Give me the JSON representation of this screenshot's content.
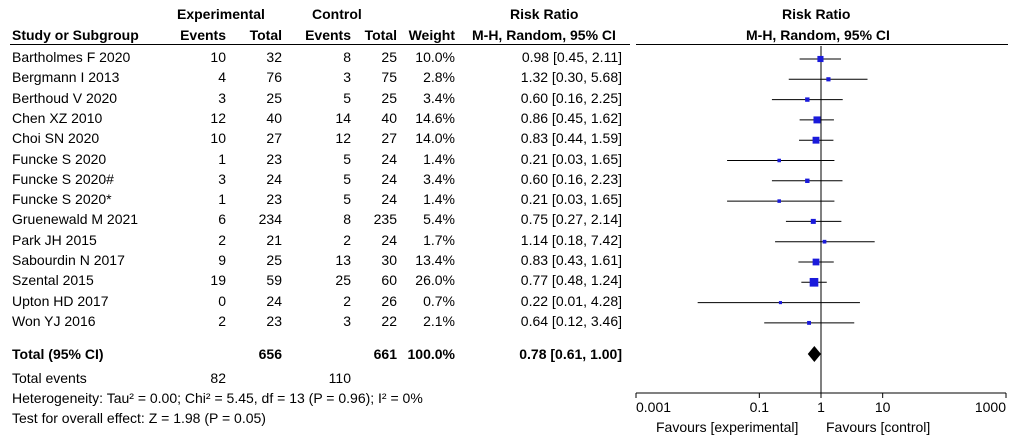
{
  "header": {
    "study_col": "Study or Subgroup",
    "experimental": "Experimental",
    "control": "Control",
    "events": "Events",
    "total": "Total",
    "weight": "Weight",
    "risk_ratio": "Risk Ratio",
    "method": "M-H, Random, 95% CI"
  },
  "totals": {
    "label": "Total (95% CI)",
    "exp_total": "656",
    "ctrl_total": "661",
    "weight": "100.0%",
    "rr": "0.78 [0.61, 1.00]",
    "events_label": "Total events",
    "exp_events": "82",
    "ctrl_events": "110",
    "heterogeneity": "Heterogeneity: Tau² = 0.00; Chi² = 5.45, df = 13 (P = 0.96); I² = 0%",
    "overall": "Test for overall effect: Z = 1.98 (P = 0.05)"
  },
  "axis": {
    "ticks": [
      "0.001",
      "0.1",
      "1",
      "10",
      "1000"
    ],
    "favours_left": "Favours [experimental]",
    "favours_right": "Favours [control]"
  },
  "colors": {
    "marker": "#1a1adb",
    "line": "#000000"
  },
  "chart_data": {
    "type": "forest",
    "title": "Risk Ratio",
    "xlabel": "M-H, Random, 95% CI",
    "scale": "log",
    "xlim": [
      0.001,
      1000
    ],
    "studies": [
      {
        "name": "Bartholmes F 2020",
        "exp_events": 10,
        "exp_total": 32,
        "ctrl_events": 8,
        "ctrl_total": 25,
        "weight": "10.0%",
        "rr_text": "0.98 [0.45, 2.11]",
        "rr": 0.98,
        "lo": 0.45,
        "hi": 2.11
      },
      {
        "name": "Bergmann I 2013",
        "exp_events": 4,
        "exp_total": 76,
        "ctrl_events": 3,
        "ctrl_total": 75,
        "weight": "2.8%",
        "rr_text": "1.32 [0.30, 5.68]",
        "rr": 1.32,
        "lo": 0.3,
        "hi": 5.68
      },
      {
        "name": "Berthoud V 2020",
        "exp_events": 3,
        "exp_total": 25,
        "ctrl_events": 5,
        "ctrl_total": 25,
        "weight": "3.4%",
        "rr_text": "0.60 [0.16, 2.25]",
        "rr": 0.6,
        "lo": 0.16,
        "hi": 2.25
      },
      {
        "name": "Chen XZ 2010",
        "exp_events": 12,
        "exp_total": 40,
        "ctrl_events": 14,
        "ctrl_total": 40,
        "weight": "14.6%",
        "rr_text": "0.86 [0.45, 1.62]",
        "rr": 0.86,
        "lo": 0.45,
        "hi": 1.62
      },
      {
        "name": "Choi SN 2020",
        "exp_events": 10,
        "exp_total": 27,
        "ctrl_events": 12,
        "ctrl_total": 27,
        "weight": "14.0%",
        "rr_text": "0.83 [0.44, 1.59]",
        "rr": 0.83,
        "lo": 0.44,
        "hi": 1.59
      },
      {
        "name": "Funcke S 2020",
        "exp_events": 1,
        "exp_total": 23,
        "ctrl_events": 5,
        "ctrl_total": 24,
        "weight": "1.4%",
        "rr_text": "0.21 [0.03, 1.65]",
        "rr": 0.21,
        "lo": 0.03,
        "hi": 1.65
      },
      {
        "name": "Funcke S 2020#",
        "exp_events": 3,
        "exp_total": 24,
        "ctrl_events": 5,
        "ctrl_total": 24,
        "weight": "3.4%",
        "rr_text": "0.60 [0.16, 2.23]",
        "rr": 0.6,
        "lo": 0.16,
        "hi": 2.23
      },
      {
        "name": "Funcke S 2020*",
        "exp_events": 1,
        "exp_total": 23,
        "ctrl_events": 5,
        "ctrl_total": 24,
        "weight": "1.4%",
        "rr_text": "0.21 [0.03, 1.65]",
        "rr": 0.21,
        "lo": 0.03,
        "hi": 1.65
      },
      {
        "name": "Gruenewald M 2021",
        "exp_events": 6,
        "exp_total": 234,
        "ctrl_events": 8,
        "ctrl_total": 235,
        "weight": "5.4%",
        "rr_text": "0.75 [0.27, 2.14]",
        "rr": 0.75,
        "lo": 0.27,
        "hi": 2.14
      },
      {
        "name": "Park JH 2015",
        "exp_events": 2,
        "exp_total": 21,
        "ctrl_events": 2,
        "ctrl_total": 24,
        "weight": "1.7%",
        "rr_text": "1.14 [0.18, 7.42]",
        "rr": 1.14,
        "lo": 0.18,
        "hi": 7.42
      },
      {
        "name": "Sabourdin N 2017",
        "exp_events": 9,
        "exp_total": 25,
        "ctrl_events": 13,
        "ctrl_total": 30,
        "weight": "13.4%",
        "rr_text": "0.83 [0.43, 1.61]",
        "rr": 0.83,
        "lo": 0.43,
        "hi": 1.61
      },
      {
        "name": "Szental 2015",
        "exp_events": 19,
        "exp_total": 59,
        "ctrl_events": 25,
        "ctrl_total": 60,
        "weight": "26.0%",
        "rr_text": "0.77 [0.48, 1.24]",
        "rr": 0.77,
        "lo": 0.48,
        "hi": 1.24
      },
      {
        "name": "Upton HD 2017",
        "exp_events": 0,
        "exp_total": 24,
        "ctrl_events": 2,
        "ctrl_total": 26,
        "weight": "0.7%",
        "rr_text": "0.22 [0.01, 4.28]",
        "rr": 0.22,
        "lo": 0.01,
        "hi": 4.28
      },
      {
        "name": "Won YJ 2016",
        "exp_events": 2,
        "exp_total": 23,
        "ctrl_events": 3,
        "ctrl_total": 22,
        "weight": "2.1%",
        "rr_text": "0.64 [0.12, 3.46]",
        "rr": 0.64,
        "lo": 0.12,
        "hi": 3.46
      }
    ],
    "pooled": {
      "rr": 0.78,
      "lo": 0.61,
      "hi": 1.0,
      "weight": 100.0
    }
  }
}
